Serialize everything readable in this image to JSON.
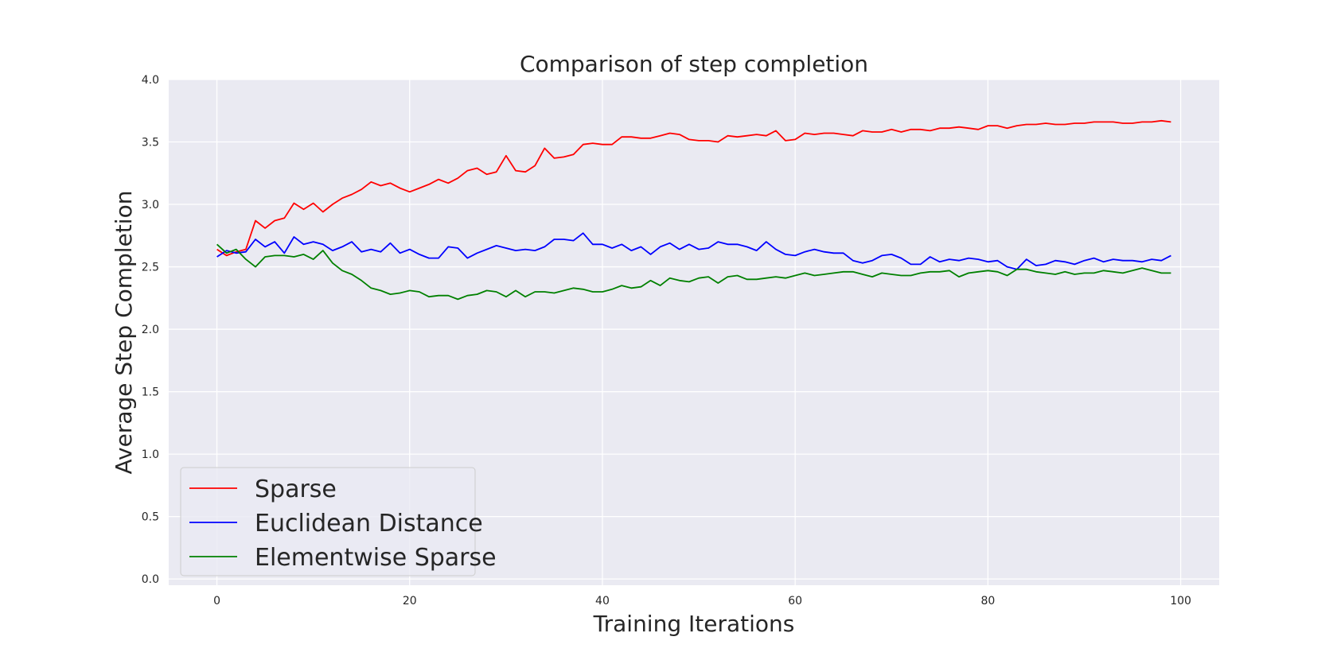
{
  "chart_data": {
    "type": "line",
    "title": "Comparison of step completion",
    "xlabel": "Training Iterations",
    "ylabel": "Average Step Completion",
    "xlim": [
      -5,
      104
    ],
    "ylim": [
      -0.05,
      4.0
    ],
    "xticks": [
      0,
      20,
      40,
      60,
      80,
      100
    ],
    "yticks": [
      0.0,
      0.5,
      1.0,
      1.5,
      2.0,
      2.5,
      3.0,
      3.5,
      4.0
    ],
    "xtick_labels": [
      "0",
      "20",
      "40",
      "60",
      "80",
      "100"
    ],
    "ytick_labels": [
      "0.0",
      "0.5",
      "1.0",
      "1.5",
      "2.0",
      "2.5",
      "3.0",
      "3.5",
      "4.0"
    ],
    "grid": true,
    "background": "#eaeaf2",
    "legend_position": "lower-left",
    "series": [
      {
        "name": "Sparse",
        "color": "#ff0000",
        "values": [
          2.64,
          2.59,
          2.62,
          2.64,
          2.87,
          2.81,
          2.87,
          2.89,
          3.01,
          2.96,
          3.01,
          2.94,
          3.0,
          3.05,
          3.08,
          3.12,
          3.18,
          3.15,
          3.17,
          3.13,
          3.1,
          3.13,
          3.16,
          3.2,
          3.17,
          3.21,
          3.27,
          3.29,
          3.24,
          3.26,
          3.39,
          3.27,
          3.26,
          3.31,
          3.45,
          3.37,
          3.38,
          3.4,
          3.48,
          3.49,
          3.48,
          3.48,
          3.54,
          3.54,
          3.53,
          3.53,
          3.55,
          3.57,
          3.56,
          3.52,
          3.51,
          3.51,
          3.5,
          3.55,
          3.54,
          3.55,
          3.56,
          3.55,
          3.59,
          3.51,
          3.52,
          3.57,
          3.56,
          3.57,
          3.57,
          3.56,
          3.55,
          3.59,
          3.58,
          3.58,
          3.6,
          3.58,
          3.6,
          3.6,
          3.59,
          3.61,
          3.61,
          3.62,
          3.61,
          3.6,
          3.63,
          3.63,
          3.61,
          3.63,
          3.64,
          3.64,
          3.65,
          3.64,
          3.64,
          3.65,
          3.65,
          3.66,
          3.66,
          3.66,
          3.65,
          3.65,
          3.66,
          3.66,
          3.67,
          3.66
        ]
      },
      {
        "name": "Euclidean Distance",
        "color": "#0000ff",
        "values": [
          2.58,
          2.63,
          2.61,
          2.62,
          2.72,
          2.66,
          2.7,
          2.61,
          2.74,
          2.68,
          2.7,
          2.68,
          2.63,
          2.66,
          2.7,
          2.62,
          2.64,
          2.62,
          2.69,
          2.61,
          2.64,
          2.6,
          2.57,
          2.57,
          2.66,
          2.65,
          2.57,
          2.61,
          2.64,
          2.67,
          2.65,
          2.63,
          2.64,
          2.63,
          2.66,
          2.72,
          2.72,
          2.71,
          2.77,
          2.68,
          2.68,
          2.65,
          2.68,
          2.63,
          2.66,
          2.6,
          2.66,
          2.69,
          2.64,
          2.68,
          2.64,
          2.65,
          2.7,
          2.68,
          2.68,
          2.66,
          2.63,
          2.7,
          2.64,
          2.6,
          2.59,
          2.62,
          2.64,
          2.62,
          2.61,
          2.61,
          2.55,
          2.53,
          2.55,
          2.59,
          2.6,
          2.57,
          2.52,
          2.52,
          2.58,
          2.54,
          2.56,
          2.55,
          2.57,
          2.56,
          2.54,
          2.55,
          2.5,
          2.48,
          2.56,
          2.51,
          2.52,
          2.55,
          2.54,
          2.52,
          2.55,
          2.57,
          2.54,
          2.56,
          2.55,
          2.55,
          2.54,
          2.56,
          2.55,
          2.59
        ]
      },
      {
        "name": "Elementwise Sparse",
        "color": "#008000",
        "values": [
          2.68,
          2.61,
          2.64,
          2.56,
          2.5,
          2.58,
          2.59,
          2.59,
          2.58,
          2.6,
          2.56,
          2.63,
          2.53,
          2.47,
          2.44,
          2.39,
          2.33,
          2.31,
          2.28,
          2.29,
          2.31,
          2.3,
          2.26,
          2.27,
          2.27,
          2.24,
          2.27,
          2.28,
          2.31,
          2.3,
          2.26,
          2.31,
          2.26,
          2.3,
          2.3,
          2.29,
          2.31,
          2.33,
          2.32,
          2.3,
          2.3,
          2.32,
          2.35,
          2.33,
          2.34,
          2.39,
          2.35,
          2.41,
          2.39,
          2.38,
          2.41,
          2.42,
          2.37,
          2.42,
          2.43,
          2.4,
          2.4,
          2.41,
          2.42,
          2.41,
          2.43,
          2.45,
          2.43,
          2.44,
          2.45,
          2.46,
          2.46,
          2.44,
          2.42,
          2.45,
          2.44,
          2.43,
          2.43,
          2.45,
          2.46,
          2.46,
          2.47,
          2.42,
          2.45,
          2.46,
          2.47,
          2.46,
          2.43,
          2.48,
          2.48,
          2.46,
          2.45,
          2.44,
          2.46,
          2.44,
          2.45,
          2.45,
          2.47,
          2.46,
          2.45,
          2.47,
          2.49,
          2.47,
          2.45,
          2.45
        ]
      }
    ]
  }
}
